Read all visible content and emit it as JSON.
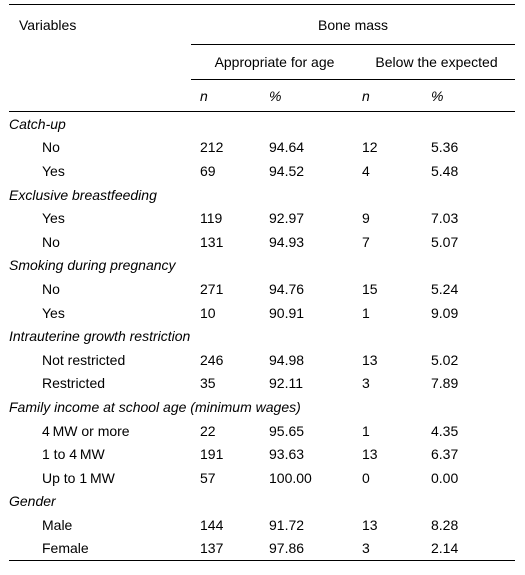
{
  "header": {
    "variables": "Variables",
    "bone_mass": "Bone mass",
    "appropriate": "Appropriate for age",
    "below": "Below the expected",
    "n": "n",
    "pct": "%"
  },
  "sections": [
    {
      "title": "Catch-up",
      "rows": [
        {
          "label": "No",
          "n1": "212",
          "p1": "94.64",
          "n2": "12",
          "p2": "5.36"
        },
        {
          "label": "Yes",
          "n1": "69",
          "p1": "94.52",
          "n2": "4",
          "p2": "5.48"
        }
      ]
    },
    {
      "title": "Exclusive breastfeeding",
      "rows": [
        {
          "label": "Yes",
          "n1": "119",
          "p1": "92.97",
          "n2": "9",
          "p2": "7.03"
        },
        {
          "label": "No",
          "n1": "131",
          "p1": "94.93",
          "n2": "7",
          "p2": "5.07"
        }
      ]
    },
    {
      "title": "Smoking during pregnancy",
      "rows": [
        {
          "label": "No",
          "n1": "271",
          "p1": "94.76",
          "n2": "15",
          "p2": "5.24"
        },
        {
          "label": "Yes",
          "n1": "10",
          "p1": "90.91",
          "n2": "1",
          "p2": "9.09"
        }
      ]
    },
    {
      "title": "Intrauterine growth restriction",
      "rows": [
        {
          "label": "Not restricted",
          "n1": "246",
          "p1": "94.98",
          "n2": "13",
          "p2": "5.02"
        },
        {
          "label": "Restricted",
          "n1": "35",
          "p1": "92.11",
          "n2": "3",
          "p2": "7.89"
        }
      ]
    },
    {
      "title": "Family income at school age (minimum wages)",
      "rows": [
        {
          "label": "4 MW or more",
          "n1": "22",
          "p1": "95.65",
          "n2": "1",
          "p2": "4.35"
        },
        {
          "label": "1 to 4 MW",
          "n1": "191",
          "p1": "93.63",
          "n2": "13",
          "p2": "6.37"
        },
        {
          "label": "Up to 1 MW",
          "n1": "57",
          "p1": "100.00",
          "n2": "0",
          "p2": "0.00"
        }
      ]
    },
    {
      "title": "Gender",
      "rows": [
        {
          "label": "Male",
          "n1": "144",
          "p1": "91.72",
          "n2": "13",
          "p2": "8.28"
        },
        {
          "label": "Female",
          "n1": "137",
          "p1": "97.86",
          "n2": "3",
          "p2": "2.14"
        }
      ]
    }
  ]
}
